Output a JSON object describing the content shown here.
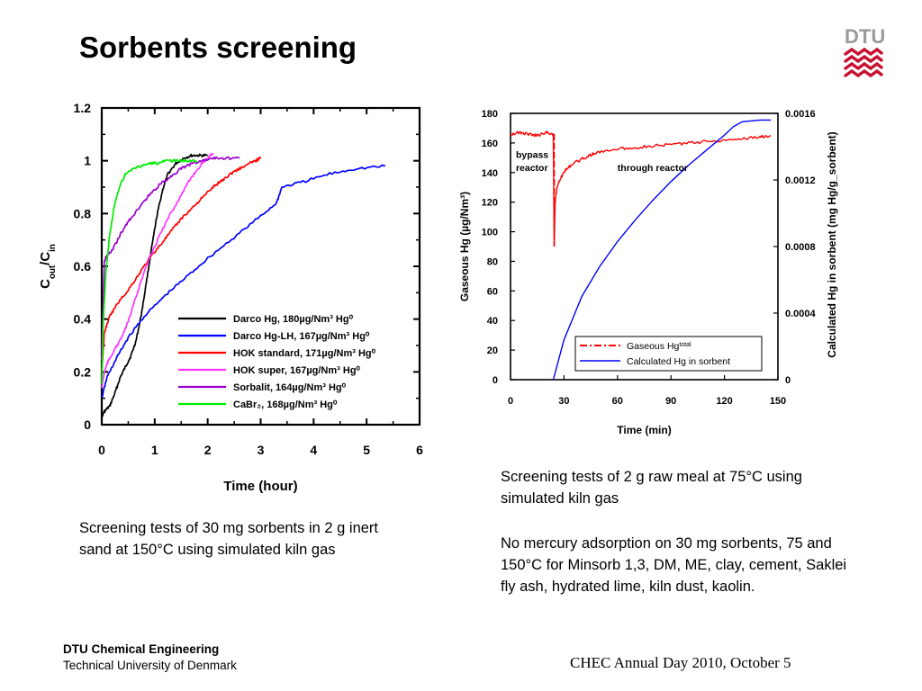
{
  "slide": {
    "title": "Sorbents screening",
    "logo_text": "DTU",
    "caption_left": "Screening tests of 30 mg sorbents in 2 g inert sand at 150°C using simulated kiln gas",
    "caption_right_1": "Screening tests of 2 g raw meal at 75°C using simulated kiln gas",
    "caption_right_2": "No mercury adsorption on 30 mg sorbents, 75 and 150°C for Minsorb 1,3, DM, ME, clay, cement, Saklei fly ash, hydrated lime, kiln dust, kaolin.",
    "footer_org": "DTU Chemical Engineering",
    "footer_uni": "Technical University of Denmark",
    "footer_event": "CHEC Annual Day 2010, October 5"
  },
  "colors": {
    "brand_red": "#c8102e",
    "logo_gray": "#999999"
  },
  "chart_data": [
    {
      "type": "line",
      "xlabel": "Time (hour)",
      "ylabel": "Cout/Cin",
      "xlim": [
        0,
        6
      ],
      "ylim": [
        0,
        1.2
      ],
      "xticks": [
        "0",
        "1",
        "2",
        "3",
        "4",
        "5",
        "6"
      ],
      "yticks": [
        "0",
        "0.2",
        "0.4",
        "0.6",
        "0.8",
        "1",
        "1.2"
      ],
      "legend_position": "bottom-right",
      "series": [
        {
          "name": "Darco Hg, 180µg/Nm³ Hg⁰",
          "color": "#000000",
          "x": [
            0,
            0.05,
            0.15,
            0.25,
            0.35,
            0.45,
            0.55,
            0.65,
            0.75,
            0.85,
            0.95,
            1.05,
            1.15,
            1.25,
            1.4,
            1.55,
            1.7,
            1.85,
            2.0
          ],
          "y": [
            0.03,
            0.05,
            0.07,
            0.12,
            0.18,
            0.22,
            0.26,
            0.32,
            0.42,
            0.55,
            0.68,
            0.8,
            0.89,
            0.95,
            0.99,
            1.01,
            1.02,
            1.02,
            1.02
          ]
        },
        {
          "name": "Darco Hg-LH, 167µg/Nm³ Hg⁰",
          "color": "#0000ff",
          "x": [
            0,
            0.1,
            0.3,
            0.5,
            0.8,
            1.2,
            1.6,
            2.0,
            2.5,
            3.0,
            3.3,
            3.4,
            3.8,
            4.3,
            4.8,
            5.35
          ],
          "y": [
            0.1,
            0.18,
            0.26,
            0.33,
            0.41,
            0.49,
            0.56,
            0.63,
            0.71,
            0.79,
            0.84,
            0.9,
            0.92,
            0.95,
            0.97,
            0.98
          ]
        },
        {
          "name": "HOK standard, 171µg/Nm³ Hg⁰",
          "color": "#ff0000",
          "x": [
            0,
            0.05,
            0.15,
            0.3,
            0.5,
            0.7,
            0.9,
            1.1,
            1.3,
            1.5,
            1.7,
            1.9,
            2.1,
            2.3,
            2.5,
            2.7,
            2.9,
            3.0
          ],
          "y": [
            0.2,
            0.35,
            0.41,
            0.46,
            0.51,
            0.57,
            0.63,
            0.68,
            0.73,
            0.78,
            0.82,
            0.86,
            0.9,
            0.93,
            0.96,
            0.98,
            1.0,
            1.01
          ]
        },
        {
          "name": "HOK super, 167µg/Nm³ Hg⁰",
          "color": "#ff33ff",
          "x": [
            0,
            0.05,
            0.1,
            0.2,
            0.35,
            0.5,
            0.7,
            0.9,
            1.1,
            1.3,
            1.5,
            1.7,
            1.9,
            2.1
          ],
          "y": [
            0.14,
            0.2,
            0.23,
            0.27,
            0.32,
            0.39,
            0.52,
            0.63,
            0.72,
            0.8,
            0.87,
            0.94,
            0.99,
            1.03
          ]
        },
        {
          "name": "Sorbalit, 164µg/Nm³ Hg⁰",
          "color": "#9900cc",
          "x": [
            0,
            0.05,
            0.1,
            0.2,
            0.35,
            0.5,
            0.7,
            0.9,
            1.1,
            1.3,
            1.5,
            1.7,
            1.9,
            2.1,
            2.3,
            2.6
          ],
          "y": [
            0.25,
            0.62,
            0.64,
            0.66,
            0.72,
            0.77,
            0.82,
            0.87,
            0.91,
            0.94,
            0.97,
            0.99,
            1.0,
            1.01,
            1.01,
            1.01
          ]
        },
        {
          "name": "CaBr₂, 168µg/Nm³ Hg⁰",
          "color": "#00ee00",
          "x": [
            0,
            0.03,
            0.08,
            0.15,
            0.25,
            0.35,
            0.45,
            0.6,
            0.75,
            0.9,
            1.05,
            1.2,
            1.4,
            1.6,
            1.8
          ],
          "y": [
            0.15,
            0.4,
            0.58,
            0.72,
            0.84,
            0.91,
            0.95,
            0.97,
            0.98,
            0.99,
            0.99,
            1.0,
            1.0,
            1.0,
            1.0
          ]
        }
      ]
    },
    {
      "type": "line",
      "xlabel": "Time (min)",
      "ylabel": "Gaseous Hg (µg/Nm³)",
      "y2label": "Calculated Hg in sorbent (mg Hg/g_sorbent)",
      "xlim": [
        0,
        150
      ],
      "ylim": [
        0,
        180
      ],
      "y2lim": [
        0,
        0.0016
      ],
      "xticks": [
        "0",
        "30",
        "60",
        "90",
        "120",
        "150"
      ],
      "yticks": [
        "0",
        "20",
        "40",
        "60",
        "80",
        "100",
        "120",
        "140",
        "160",
        "180"
      ],
      "y2ticks": [
        "0",
        "0.0004",
        "0.0008",
        "0.0012",
        "0.0016"
      ],
      "legend_position": "bottom-right",
      "annotations": [
        {
          "text": "bypass",
          "x": 3,
          "y": 150
        },
        {
          "text": "reactor",
          "x": 3,
          "y": 141
        },
        {
          "text": "through reactor",
          "x": 60,
          "y": 141
        }
      ],
      "series": [
        {
          "name": "Gaseous Hg",
          "name_sup": "total",
          "color": "#ff0000",
          "axis": "left",
          "style": "dash-dot",
          "x": [
            0,
            5,
            10,
            15,
            20,
            24,
            24.5,
            25,
            26,
            28,
            31,
            35,
            40,
            45,
            50,
            60,
            70,
            80,
            90,
            100,
            110,
            120,
            130,
            140,
            146
          ],
          "y": [
            166,
            167,
            166,
            165,
            167,
            166,
            90,
            120,
            130,
            136,
            142,
            146,
            149,
            152,
            154,
            156,
            157,
            158,
            159,
            160,
            161,
            162,
            163,
            164,
            165
          ]
        },
        {
          "name": "Calculated Hg in sorbent",
          "color": "#0000ff",
          "axis": "right",
          "x": [
            24,
            30,
            40,
            50,
            60,
            70,
            80,
            90,
            100,
            110,
            120,
            125,
            130,
            140,
            146
          ],
          "y": [
            0,
            0.00024,
            0.0005,
            0.00068,
            0.00083,
            0.00096,
            0.00108,
            0.00119,
            0.00129,
            0.00138,
            0.00147,
            0.00152,
            0.00155,
            0.00156,
            0.00156
          ]
        }
      ]
    }
  ]
}
